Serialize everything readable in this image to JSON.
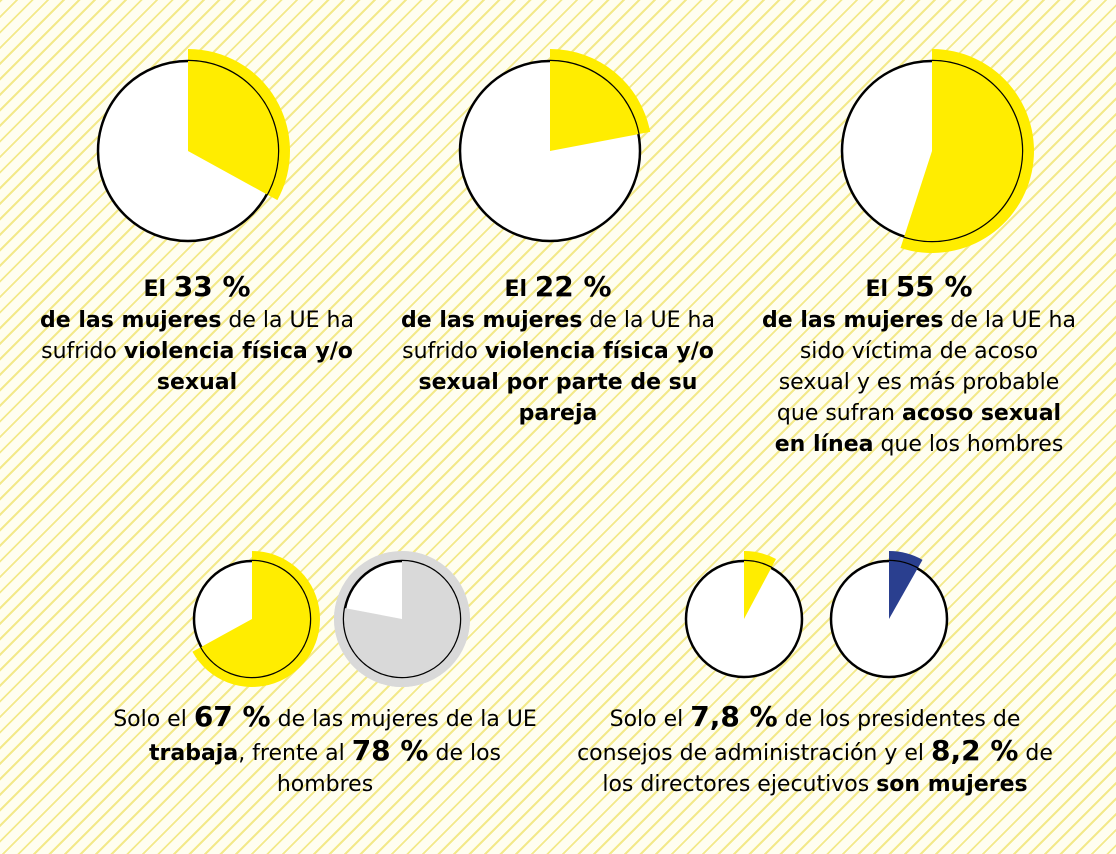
{
  "chart_data": [
    {
      "type": "pie",
      "values": [
        33
      ],
      "color": "#ffed00",
      "text": {
        "pre": "El",
        "pct": "33 %",
        "bold1": "de las mujeres",
        "mid": " de la UE ha sufrido ",
        "bold2": "violencia física y/o sexual"
      }
    },
    {
      "type": "pie",
      "values": [
        22
      ],
      "color": "#ffed00",
      "text": {
        "pre": "El",
        "pct": "22 %",
        "bold1": "de las mujeres",
        "mid": " de la UE ha sufrido ",
        "bold2": "violencia física y/o sexual por parte de su pareja"
      }
    },
    {
      "type": "pie",
      "values": [
        55
      ],
      "color": "#ffed00",
      "text": {
        "pre": "El",
        "pct": "55 %",
        "bold1": "de las mujeres",
        "mid": " de la UE ha sido víctima de acoso sexual y es más probable que sufran ",
        "bold2": "acoso sexual en línea",
        "post": " que los hombres"
      }
    },
    {
      "type": "pie",
      "series": [
        {
          "values": [
            67
          ],
          "color": "#ffed00"
        },
        {
          "values": [
            78
          ],
          "color": "#d9d9d9"
        }
      ],
      "text": {
        "s1": "Solo el ",
        "pct1": "67 %",
        "s2": " de las mujeres de la UE ",
        "bold1": "trabaja",
        "s3": ", frente al ",
        "pct2": "78 %",
        "s4": " de los hombres"
      }
    },
    {
      "type": "pie",
      "series": [
        {
          "values": [
            7.8
          ],
          "color": "#ffed00"
        },
        {
          "values": [
            8.2
          ],
          "color": "#2a3f8f"
        }
      ],
      "text": {
        "s1": "Solo el ",
        "pct1": "7,8 %",
        "s2": " de los presidentes de consejos de administración y el ",
        "pct2": "8,2 %",
        "s3": " de los directores ejecutivos ",
        "bold1": "son mujeres"
      }
    }
  ]
}
